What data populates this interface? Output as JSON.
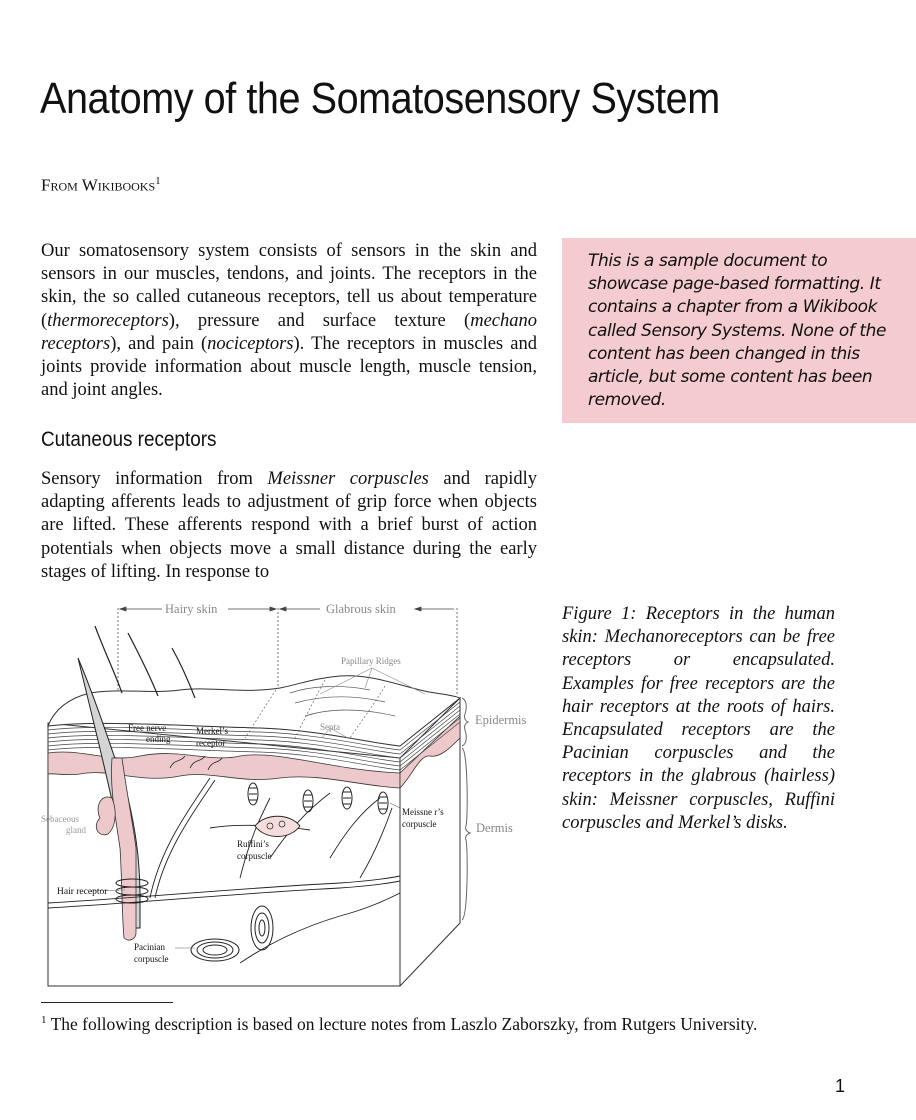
{
  "title": "Anatomy of the Somatosensory System",
  "from": {
    "label": "From Wikibooks",
    "footnote_mark": "1"
  },
  "intro": {
    "t1": "Our somatosensory system consists of sensors in the skin and sensors in our muscles, tendons, and joints. The re­ceptors in the skin, the so called cutaneous receptors, tell us about temperature (",
    "e1": "thermoreceptors",
    "t2": "), pressure and sur­face texture (",
    "e2": "mechano receptors",
    "t3": "), and pain (",
    "e3": "nociceptors",
    "t4": "). The receptors in muscles and joints provide information about muscle length, muscle tension, and joint angles."
  },
  "note": "This is a sample document to showcase page-based formatting. It contains a chapter from a Wikibook called Sensory Systems. None of the content has been changed in this article, but some content has been removed.",
  "section": {
    "heading": "Cutaneous receptors",
    "t1": "Sensory information from ",
    "e1": "Meissner corpuscles",
    "t2": " and rapidly adapting afferents leads to adjustment of grip force when objects are lifted. These afferents respond with a brief burst of action potentials when objects move a small dis­tance during the early stages of lifting. In response to"
  },
  "figure": {
    "labels": {
      "hairy_skin": "Hairy skin",
      "glabrous_skin": "Glabrous skin",
      "papillary_ridges": "Papillary Ridges",
      "epidermis": "Epidermis",
      "dermis": "Dermis",
      "septa": "Septa",
      "free_nerve_1": "Free nerve",
      "free_nerve_2": "ending",
      "merkel_1": "Merkel’s",
      "merkel_2": "receptor",
      "sebaceous_1": "Sebaceous",
      "sebaceous_2": "gland",
      "meissner_1": "Meissne r’s",
      "meissner_2": "corpuscle",
      "ruffini_1": "Ruffini’s",
      "ruffini_2": "corpuscle",
      "hair_receptor": "Hair receptor",
      "pacinian_1": "Pacinian",
      "pacinian_2": "corpuscle"
    },
    "caption": "Figure 1:  Receptors in the hu­man skin: Mechanoreceptors can be free receptors or encapsulated. Examples for free receptors are the hair receptors at the roots of hairs. Encapsulated receptors are the Pacinian corpuscles and the receptors in the glabrous (hair­less) skin: Meissner corpuscles, Ruffini corpuscles and Merkel’s disks."
  },
  "footnote": {
    "mark": "1",
    "text": "The following description is based on lecture notes from Laszlo Zaborszky, from Rutgers University."
  },
  "page_number": "1",
  "colors": {
    "note_bg": "#f4ccd0",
    "dermis_pink": "#eec9cb",
    "figure_line": "#333333",
    "figure_label_gray": "#888888"
  }
}
